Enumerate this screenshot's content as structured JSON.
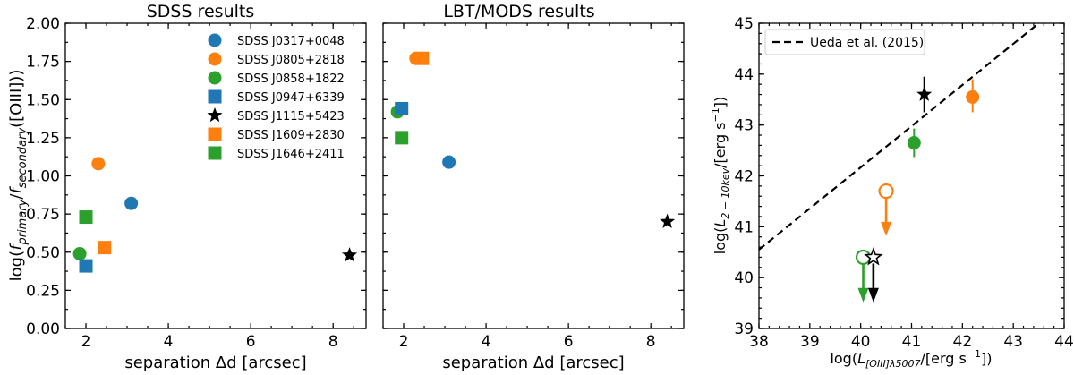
{
  "colors": {
    "blue": "#1f77b4",
    "orange": "#ff7f0e",
    "green": "#2ca02c",
    "black": "#000000"
  },
  "chart_data": [
    {
      "type": "scatter",
      "title": "SDSS results",
      "xlabel": "separation Δd [arcsec]",
      "ylabel": "log(f_primary/f_secondary([OIII]))",
      "ylabel_parts": {
        "lead": "log(",
        "f1": "f",
        "sub1": "primary",
        "mid": "/",
        "f2": "f",
        "sub2": "secondary",
        "tail": "([OIII]))"
      },
      "xlim": [
        1.5,
        8.8
      ],
      "ylim": [
        0.0,
        2.0
      ],
      "xticks": [
        2,
        4,
        6,
        8
      ],
      "xtick_labels": [
        "2",
        "4",
        "6",
        "8"
      ],
      "yticks": [
        0.0,
        0.25,
        0.5,
        0.75,
        1.0,
        1.25,
        1.5,
        1.75,
        2.0
      ],
      "ytick_labels": [
        "0.00",
        "0.25",
        "0.50",
        "0.75",
        "1.00",
        "1.25",
        "1.50",
        "1.75",
        "2.00"
      ],
      "legend_position": "top-right",
      "series": [
        {
          "name": "SDSS J0317+0048",
          "marker": "circle",
          "color": "#1f77b4",
          "x": [
            3.1
          ],
          "y": [
            0.82
          ]
        },
        {
          "name": "SDSS J0805+2818",
          "marker": "circle",
          "color": "#ff7f0e",
          "x": [
            2.3
          ],
          "y": [
            1.08
          ]
        },
        {
          "name": "SDSS J0858+1822",
          "marker": "circle",
          "color": "#2ca02c",
          "x": [
            1.85
          ],
          "y": [
            0.49
          ]
        },
        {
          "name": "SDSS J0947+6339",
          "marker": "square",
          "color": "#1f77b4",
          "x": [
            2.0
          ],
          "y": [
            0.41
          ]
        },
        {
          "name": "SDSS J1115+5423",
          "marker": "star",
          "color": "#000000",
          "x": [
            8.4
          ],
          "y": [
            0.48
          ]
        },
        {
          "name": "SDSS J1609+2830",
          "marker": "square",
          "color": "#ff7f0e",
          "x": [
            2.45
          ],
          "y": [
            0.53
          ]
        },
        {
          "name": "SDSS J1646+2411",
          "marker": "square",
          "color": "#2ca02c",
          "x": [
            2.0
          ],
          "y": [
            0.73
          ]
        }
      ]
    },
    {
      "type": "scatter",
      "title": "LBT/MODS results",
      "xlabel": "separation Δd [arcsec]",
      "xlim": [
        1.5,
        8.8
      ],
      "ylim": [
        0.0,
        2.0
      ],
      "xticks": [
        2,
        4,
        6,
        8
      ],
      "xtick_labels": [
        "2",
        "4",
        "6",
        "8"
      ],
      "series": [
        {
          "name": "SDSS J0317+0048",
          "marker": "circle",
          "color": "#1f77b4",
          "x": [
            3.1
          ],
          "y": [
            1.09
          ]
        },
        {
          "name": "SDSS J0805+2818",
          "marker": "circle",
          "color": "#ff7f0e",
          "x": [
            2.3
          ],
          "y": [
            1.77
          ]
        },
        {
          "name": "SDSS J0858+1822",
          "marker": "circle",
          "color": "#2ca02c",
          "x": [
            1.85
          ],
          "y": [
            1.42
          ]
        },
        {
          "name": "SDSS J0947+6339",
          "marker": "square",
          "color": "#1f77b4",
          "x": [
            1.95
          ],
          "y": [
            1.44
          ]
        },
        {
          "name": "SDSS J1115+5423",
          "marker": "star",
          "color": "#000000",
          "x": [
            8.4
          ],
          "y": [
            0.7
          ]
        },
        {
          "name": "SDSS J1609+2830",
          "marker": "square",
          "color": "#ff7f0e",
          "x": [
            2.45
          ],
          "y": [
            1.77
          ]
        },
        {
          "name": "SDSS J1646+2411",
          "marker": "square",
          "color": "#2ca02c",
          "x": [
            1.95
          ],
          "y": [
            1.25
          ]
        }
      ]
    },
    {
      "type": "scatter",
      "xlabel": "log(L_[OIII]λ5007/[erg s⁻¹])",
      "xlabel_parts": {
        "lead": "log(",
        "L": "L",
        "sub": "[OIII]λ5007",
        "tail": "/[erg s",
        "sup": "−1",
        "end": "])"
      },
      "ylabel": "log(L_2−10kev/[erg s⁻¹])",
      "ylabel_parts": {
        "lead": "log(",
        "L": "L",
        "sub": "2 − 10kev",
        "tail": "/[erg s",
        "sup": "−1",
        "end": "])"
      },
      "xlim": [
        38,
        44
      ],
      "ylim": [
        39,
        45
      ],
      "xticks": [
        38,
        39,
        40,
        41,
        42,
        43,
        44
      ],
      "xtick_labels": [
        "38",
        "39",
        "40",
        "41",
        "42",
        "43",
        "44"
      ],
      "yticks": [
        39,
        40,
        41,
        42,
        43,
        44,
        45
      ],
      "ytick_labels": [
        "39",
        "40",
        "41",
        "42",
        "43",
        "44",
        "45"
      ],
      "legend_position": "top-left",
      "relation": {
        "name": "Ueda et al. (2015)",
        "style": "dashed",
        "x": [
          38.0,
          43.5
        ],
        "y": [
          40.55,
          45.0
        ]
      },
      "series": [
        {
          "name": "SDSS J0805+2818",
          "marker": "circle",
          "color": "#ff7f0e",
          "x": 42.2,
          "y": 43.55,
          "yerr": [
            0.3,
            0.35
          ]
        },
        {
          "name": "SDSS J0858+1822",
          "marker": "circle",
          "color": "#2ca02c",
          "x": 41.05,
          "y": 42.65,
          "yerr": [
            0.28,
            0.28
          ]
        },
        {
          "name": "SDSS J1115+5423",
          "marker": "star",
          "color": "#000000",
          "x": 41.25,
          "y": 43.6,
          "yerr": [
            0.35,
            0.35
          ]
        },
        {
          "name": "SDSS J0805+2818",
          "marker": "circle",
          "color": "#ff7f0e",
          "open": true,
          "upper_limit": true,
          "x": 40.5,
          "y": 41.7,
          "arrow_to": 40.85
        },
        {
          "name": "SDSS J0858+1822",
          "marker": "circle",
          "color": "#2ca02c",
          "open": true,
          "upper_limit": true,
          "x": 40.05,
          "y": 40.4,
          "arrow_to": 39.55
        },
        {
          "name": "SDSS J1115+5423",
          "marker": "star",
          "color": "#000000",
          "open": true,
          "upper_limit": true,
          "x": 40.25,
          "y": 40.4,
          "arrow_to": 39.55
        }
      ]
    }
  ]
}
